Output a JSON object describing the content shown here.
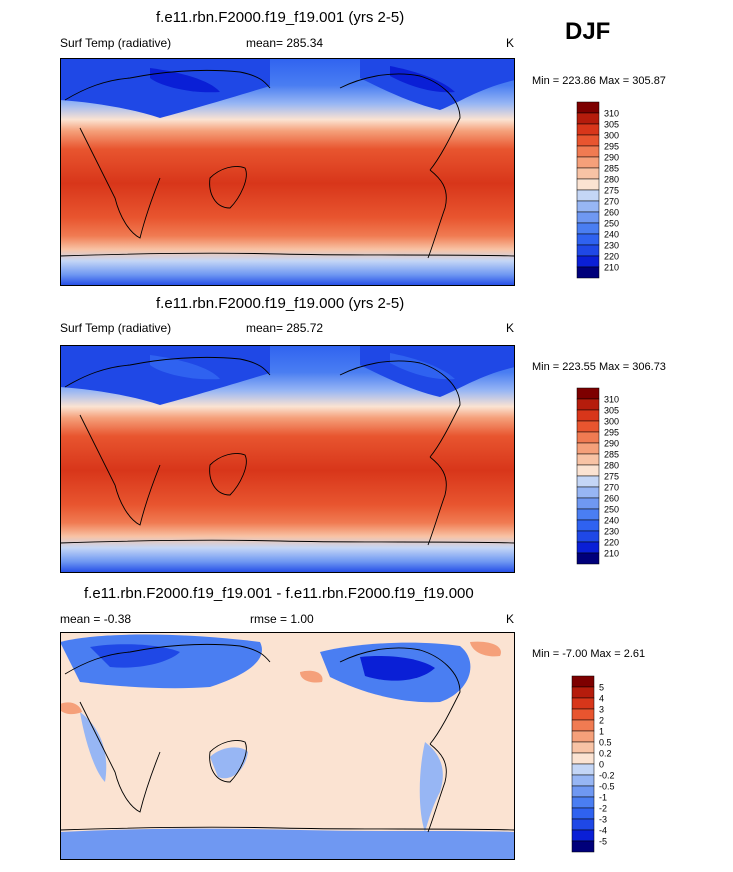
{
  "season": "DJF",
  "panels": [
    {
      "title": "f.e11.rbn.F2000.f19_f19.001 (yrs 2-5)",
      "left_label": "Surf Temp (radiative)",
      "center_label": "mean= 285.34",
      "units": "K",
      "minmax": "Min = 223.86 Max = 305.87"
    },
    {
      "title": "f.e11.rbn.F2000.f19_f19.000 (yrs 2-5)",
      "left_label": "Surf Temp (radiative)",
      "center_label": "mean= 285.72",
      "units": "K",
      "minmax": "Min = 223.55 Max = 306.73"
    },
    {
      "title": "f.e11.rbn.F2000.f19_f19.001 - f.e11.rbn.F2000.f19_f19.000",
      "left_label": "mean =  -0.38",
      "center_label": "rmse =   1.00",
      "units": "K",
      "minmax": "Min =  -7.00 Max =   2.61"
    }
  ],
  "chart_data": [
    {
      "type": "heatmap",
      "title": "f.e11.rbn.F2000.f19_f19.001 (yrs 2-5)",
      "variable": "Surf Temp (radiative)",
      "units": "K",
      "mean": 285.34,
      "min": 223.86,
      "max": 305.87,
      "levels": [
        210,
        220,
        230,
        240,
        250,
        260,
        270,
        275,
        280,
        285,
        290,
        295,
        300,
        305,
        310
      ],
      "colors": [
        "#00007a",
        "#0a1fd6",
        "#1f48e6",
        "#2f62f0",
        "#4a7ef2",
        "#6f98f2",
        "#97b6f4",
        "#c4d6f6",
        "#fbe3d2",
        "#f8c3a5",
        "#f5a07a",
        "#f07b52",
        "#e8552f",
        "#d8361a",
        "#b51c0c",
        "#7d0000"
      ]
    },
    {
      "type": "heatmap",
      "title": "f.e11.rbn.F2000.f19_f19.000 (yrs 2-5)",
      "variable": "Surf Temp (radiative)",
      "units": "K",
      "mean": 285.72,
      "min": 223.55,
      "max": 306.73,
      "levels": [
        210,
        220,
        230,
        240,
        250,
        260,
        270,
        275,
        280,
        285,
        290,
        295,
        300,
        305,
        310
      ],
      "colors": [
        "#00007a",
        "#0a1fd6",
        "#1f48e6",
        "#2f62f0",
        "#4a7ef2",
        "#6f98f2",
        "#97b6f4",
        "#c4d6f6",
        "#fbe3d2",
        "#f8c3a5",
        "#f5a07a",
        "#f07b52",
        "#e8552f",
        "#d8361a",
        "#b51c0c",
        "#7d0000"
      ]
    },
    {
      "type": "heatmap",
      "title": "f.e11.rbn.F2000.f19_f19.001 - f.e11.rbn.F2000.f19_f19.000",
      "variable": "difference",
      "units": "K",
      "mean": -0.38,
      "rmse": 1.0,
      "min": -7.0,
      "max": 2.61,
      "levels": [
        -5,
        -4,
        -3,
        -2,
        -1,
        -0.5,
        -0.2,
        0,
        0.2,
        0.5,
        1,
        2,
        3,
        4,
        5
      ],
      "colors": [
        "#00007a",
        "#0a1fd6",
        "#1f48e6",
        "#2f62f0",
        "#4a7ef2",
        "#6f98f2",
        "#97b6f4",
        "#c4d6f6",
        "#fbe3d2",
        "#f8c3a5",
        "#f5a07a",
        "#f07b52",
        "#e8552f",
        "#d8361a",
        "#b51c0c",
        "#7d0000"
      ]
    }
  ]
}
